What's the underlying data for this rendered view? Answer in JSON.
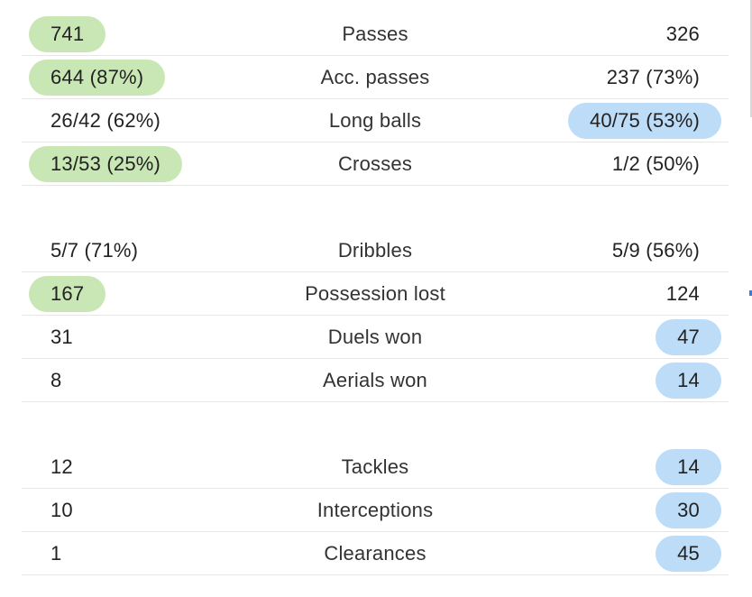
{
  "groups": [
    {
      "rows": [
        {
          "label": "Passes",
          "home": "741",
          "away": "326",
          "highlight": "home"
        },
        {
          "label": "Acc. passes",
          "home": "644 (87%)",
          "away": "237 (73%)",
          "highlight": "home"
        },
        {
          "label": "Long balls",
          "home": "26/42 (62%)",
          "away": "40/75 (53%)",
          "highlight": "away"
        },
        {
          "label": "Crosses",
          "home": "13/53 (25%)",
          "away": "1/2 (50%)",
          "highlight": "home"
        }
      ]
    },
    {
      "rows": [
        {
          "label": "Dribbles",
          "home": "5/7 (71%)",
          "away": "5/9 (56%)",
          "highlight": "none"
        },
        {
          "label": "Possession lost",
          "home": "167",
          "away": "124",
          "highlight": "home"
        },
        {
          "label": "Duels won",
          "home": "31",
          "away": "47",
          "highlight": "away"
        },
        {
          "label": "Aerials won",
          "home": "8",
          "away": "14",
          "highlight": "away"
        }
      ]
    },
    {
      "rows": [
        {
          "label": "Tackles",
          "home": "12",
          "away": "14",
          "highlight": "away"
        },
        {
          "label": "Interceptions",
          "home": "10",
          "away": "30",
          "highlight": "away"
        },
        {
          "label": "Clearances",
          "home": "1",
          "away": "45",
          "highlight": "away"
        }
      ]
    }
  ],
  "colors": {
    "home_highlight": "#c9e7b5",
    "away_highlight": "#bcdcf8",
    "divider": "#e6e6e6"
  }
}
